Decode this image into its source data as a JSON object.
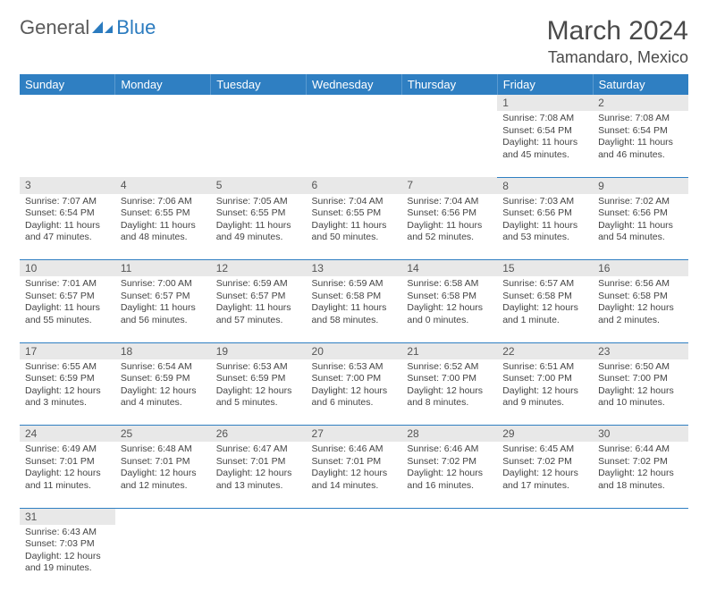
{
  "logo": {
    "text1": "General",
    "text2": "Blue",
    "color1": "#5a5a5a",
    "color2": "#2b7bbf"
  },
  "title": "March 2024",
  "location": "Tamandaro, Mexico",
  "header_bg": "#2f7fc2",
  "daynum_bg": "#e8e8e8",
  "border_color": "#2f7fc2",
  "days": [
    "Sunday",
    "Monday",
    "Tuesday",
    "Wednesday",
    "Thursday",
    "Friday",
    "Saturday"
  ],
  "weeks": [
    [
      null,
      null,
      null,
      null,
      null,
      {
        "n": "1",
        "sunrise": "7:08 AM",
        "sunset": "6:54 PM",
        "daylight": "11 hours and 45 minutes."
      },
      {
        "n": "2",
        "sunrise": "7:08 AM",
        "sunset": "6:54 PM",
        "daylight": "11 hours and 46 minutes."
      }
    ],
    [
      {
        "n": "3",
        "sunrise": "7:07 AM",
        "sunset": "6:54 PM",
        "daylight": "11 hours and 47 minutes."
      },
      {
        "n": "4",
        "sunrise": "7:06 AM",
        "sunset": "6:55 PM",
        "daylight": "11 hours and 48 minutes."
      },
      {
        "n": "5",
        "sunrise": "7:05 AM",
        "sunset": "6:55 PM",
        "daylight": "11 hours and 49 minutes."
      },
      {
        "n": "6",
        "sunrise": "7:04 AM",
        "sunset": "6:55 PM",
        "daylight": "11 hours and 50 minutes."
      },
      {
        "n": "7",
        "sunrise": "7:04 AM",
        "sunset": "6:56 PM",
        "daylight": "11 hours and 52 minutes."
      },
      {
        "n": "8",
        "sunrise": "7:03 AM",
        "sunset": "6:56 PM",
        "daylight": "11 hours and 53 minutes."
      },
      {
        "n": "9",
        "sunrise": "7:02 AM",
        "sunset": "6:56 PM",
        "daylight": "11 hours and 54 minutes."
      }
    ],
    [
      {
        "n": "10",
        "sunrise": "7:01 AM",
        "sunset": "6:57 PM",
        "daylight": "11 hours and 55 minutes."
      },
      {
        "n": "11",
        "sunrise": "7:00 AM",
        "sunset": "6:57 PM",
        "daylight": "11 hours and 56 minutes."
      },
      {
        "n": "12",
        "sunrise": "6:59 AM",
        "sunset": "6:57 PM",
        "daylight": "11 hours and 57 minutes."
      },
      {
        "n": "13",
        "sunrise": "6:59 AM",
        "sunset": "6:58 PM",
        "daylight": "11 hours and 58 minutes."
      },
      {
        "n": "14",
        "sunrise": "6:58 AM",
        "sunset": "6:58 PM",
        "daylight": "12 hours and 0 minutes."
      },
      {
        "n": "15",
        "sunrise": "6:57 AM",
        "sunset": "6:58 PM",
        "daylight": "12 hours and 1 minute."
      },
      {
        "n": "16",
        "sunrise": "6:56 AM",
        "sunset": "6:58 PM",
        "daylight": "12 hours and 2 minutes."
      }
    ],
    [
      {
        "n": "17",
        "sunrise": "6:55 AM",
        "sunset": "6:59 PM",
        "daylight": "12 hours and 3 minutes."
      },
      {
        "n": "18",
        "sunrise": "6:54 AM",
        "sunset": "6:59 PM",
        "daylight": "12 hours and 4 minutes."
      },
      {
        "n": "19",
        "sunrise": "6:53 AM",
        "sunset": "6:59 PM",
        "daylight": "12 hours and 5 minutes."
      },
      {
        "n": "20",
        "sunrise": "6:53 AM",
        "sunset": "7:00 PM",
        "daylight": "12 hours and 6 minutes."
      },
      {
        "n": "21",
        "sunrise": "6:52 AM",
        "sunset": "7:00 PM",
        "daylight": "12 hours and 8 minutes."
      },
      {
        "n": "22",
        "sunrise": "6:51 AM",
        "sunset": "7:00 PM",
        "daylight": "12 hours and 9 minutes."
      },
      {
        "n": "23",
        "sunrise": "6:50 AM",
        "sunset": "7:00 PM",
        "daylight": "12 hours and 10 minutes."
      }
    ],
    [
      {
        "n": "24",
        "sunrise": "6:49 AM",
        "sunset": "7:01 PM",
        "daylight": "12 hours and 11 minutes."
      },
      {
        "n": "25",
        "sunrise": "6:48 AM",
        "sunset": "7:01 PM",
        "daylight": "12 hours and 12 minutes."
      },
      {
        "n": "26",
        "sunrise": "6:47 AM",
        "sunset": "7:01 PM",
        "daylight": "12 hours and 13 minutes."
      },
      {
        "n": "27",
        "sunrise": "6:46 AM",
        "sunset": "7:01 PM",
        "daylight": "12 hours and 14 minutes."
      },
      {
        "n": "28",
        "sunrise": "6:46 AM",
        "sunset": "7:02 PM",
        "daylight": "12 hours and 16 minutes."
      },
      {
        "n": "29",
        "sunrise": "6:45 AM",
        "sunset": "7:02 PM",
        "daylight": "12 hours and 17 minutes."
      },
      {
        "n": "30",
        "sunrise": "6:44 AM",
        "sunset": "7:02 PM",
        "daylight": "12 hours and 18 minutes."
      }
    ],
    [
      {
        "n": "31",
        "sunrise": "6:43 AM",
        "sunset": "7:03 PM",
        "daylight": "12 hours and 19 minutes."
      },
      null,
      null,
      null,
      null,
      null,
      null
    ]
  ],
  "labels": {
    "sunrise": "Sunrise: ",
    "sunset": "Sunset: ",
    "daylight": "Daylight: "
  }
}
